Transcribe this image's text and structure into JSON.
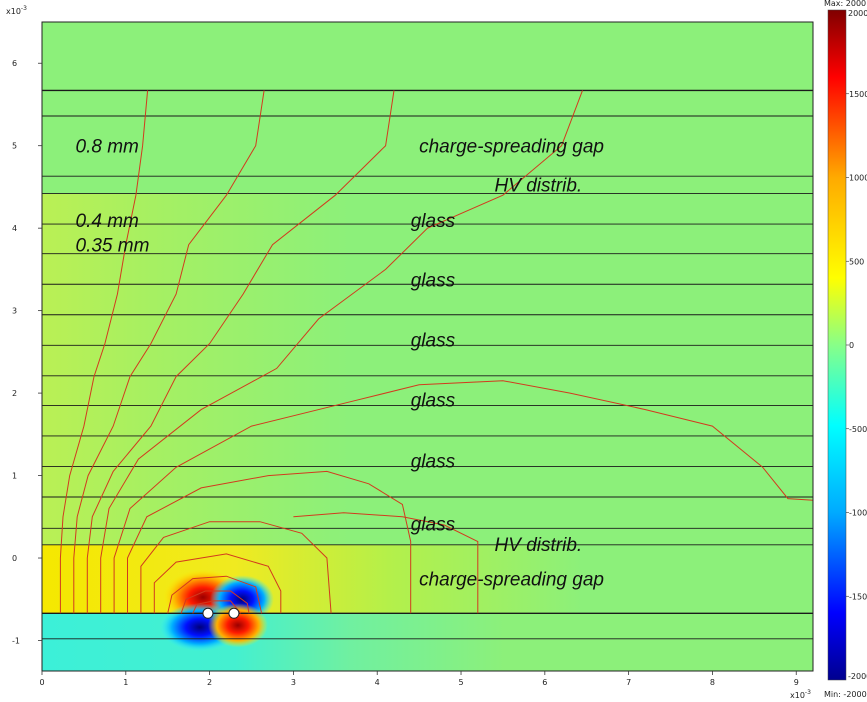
{
  "chart_data": {
    "type": "heatmap",
    "title": "",
    "x_multiplier_label": "x10",
    "x_multiplier_exp": "-3",
    "y_multiplier_label": "x10",
    "y_multiplier_exp": "-3",
    "xlim": [
      0,
      9.2
    ],
    "ylim": [
      -1.37,
      6.5
    ],
    "x_ticks": [
      0,
      1,
      2,
      3,
      4,
      5,
      6,
      7,
      8,
      9
    ],
    "y_ticks": [
      -1,
      0,
      1,
      2,
      3,
      4,
      5,
      6
    ],
    "layer_boundaries_y": [
      -0.98,
      -0.67,
      0.16,
      0.36,
      0.74,
      1.11,
      1.48,
      1.85,
      2.21,
      2.58,
      2.95,
      3.32,
      3.69,
      4.05,
      4.42,
      4.63,
      5.36,
      5.67
    ],
    "electrodes": [
      {
        "x": 1.98,
        "y": -0.67
      },
      {
        "x": 2.29,
        "y": -0.67
      }
    ],
    "annotations": [
      {
        "text": "0.8 mm",
        "x": 0.4,
        "y": 5.0
      },
      {
        "text": "charge-spreading gap",
        "x": 4.5,
        "y": 5.0
      },
      {
        "text": "HV distrib.",
        "x": 5.4,
        "y": 4.53
      },
      {
        "text": "0.4 mm",
        "x": 0.4,
        "y": 4.1
      },
      {
        "text": "glass",
        "x": 4.4,
        "y": 4.1
      },
      {
        "text": "0.35 mm",
        "x": 0.4,
        "y": 3.8
      },
      {
        "text": "glass",
        "x": 4.4,
        "y": 3.38
      },
      {
        "text": "glass",
        "x": 4.4,
        "y": 2.65
      },
      {
        "text": "glass",
        "x": 4.4,
        "y": 1.92
      },
      {
        "text": "glass",
        "x": 4.4,
        "y": 1.18
      },
      {
        "text": "glass",
        "x": 4.4,
        "y": 0.42
      },
      {
        "text": "HV distrib.",
        "x": 5.4,
        "y": 0.17
      },
      {
        "text": "charge-spreading gap",
        "x": 4.5,
        "y": -0.25
      }
    ],
    "colorbar": {
      "range": [
        -2000,
        2000
      ],
      "ticks": [
        2000,
        1500,
        1000,
        500,
        0,
        -500,
        -1000,
        -1500,
        -2000
      ],
      "max_label": "Max: 2000",
      "min_label": "Min: -2000",
      "colormap": [
        "#00008f",
        "#0000ff",
        "#00aaff",
        "#00ffff",
        "#88ff88",
        "#ffff00",
        "#ffaa00",
        "#ff0000",
        "#800000"
      ]
    },
    "background_color": "#8cf07a",
    "potential_lines": [
      [
        [
          0.22,
          -0.67
        ],
        [
          0.22,
          0.0
        ],
        [
          0.25,
          0.5
        ],
        [
          0.33,
          1.0
        ],
        [
          0.5,
          1.6
        ],
        [
          0.62,
          2.2
        ],
        [
          0.75,
          2.6
        ],
        [
          0.9,
          3.2
        ],
        [
          1.0,
          3.8
        ],
        [
          1.12,
          4.4
        ],
        [
          1.2,
          5.0
        ],
        [
          1.26,
          5.67
        ]
      ],
      [
        [
          0.38,
          -0.67
        ],
        [
          0.38,
          0.0
        ],
        [
          0.42,
          0.5
        ],
        [
          0.55,
          1.0
        ],
        [
          0.85,
          1.6
        ],
        [
          1.05,
          2.2
        ],
        [
          1.3,
          2.6
        ],
        [
          1.6,
          3.2
        ],
        [
          1.75,
          3.8
        ],
        [
          2.2,
          4.4
        ],
        [
          2.55,
          5.0
        ],
        [
          2.65,
          5.67
        ]
      ],
      [
        [
          0.54,
          -0.67
        ],
        [
          0.54,
          0.0
        ],
        [
          0.6,
          0.5
        ],
        [
          0.85,
          1.05
        ],
        [
          1.3,
          1.6
        ],
        [
          1.6,
          2.2
        ],
        [
          2.0,
          2.6
        ],
        [
          2.4,
          3.2
        ],
        [
          2.75,
          3.8
        ],
        [
          3.5,
          4.4
        ],
        [
          4.1,
          5.0
        ],
        [
          4.2,
          5.67
        ]
      ],
      [
        [
          0.7,
          -0.67
        ],
        [
          0.7,
          0.0
        ],
        [
          0.8,
          0.6
        ],
        [
          1.15,
          1.2
        ],
        [
          1.9,
          1.8
        ],
        [
          2.8,
          2.3
        ],
        [
          3.3,
          2.9
        ],
        [
          4.1,
          3.5
        ],
        [
          4.6,
          4.0
        ],
        [
          5.5,
          4.4
        ],
        [
          6.2,
          5.0
        ],
        [
          6.45,
          5.67
        ]
      ],
      [
        [
          0.86,
          -0.67
        ],
        [
          0.86,
          0.0
        ],
        [
          1.05,
          0.6
        ],
        [
          1.6,
          1.1
        ],
        [
          2.5,
          1.6
        ],
        [
          3.7,
          1.9
        ],
        [
          4.5,
          2.1
        ],
        [
          5.5,
          2.15
        ],
        [
          6.3,
          2.0
        ],
        [
          7.2,
          1.8
        ],
        [
          8.0,
          1.6
        ],
        [
          8.6,
          1.1
        ],
        [
          8.9,
          0.72
        ],
        [
          9.2,
          0.7
        ]
      ],
      [
        [
          1.02,
          -0.67
        ],
        [
          1.02,
          0.0
        ],
        [
          1.25,
          0.5
        ],
        [
          1.9,
          0.85
        ],
        [
          2.7,
          1.0
        ],
        [
          3.4,
          1.05
        ],
        [
          3.9,
          0.9
        ],
        [
          4.3,
          0.65
        ],
        [
          4.4,
          0.2
        ],
        [
          4.4,
          -0.67
        ]
      ],
      [
        [
          1.18,
          -0.67
        ],
        [
          1.18,
          -0.1
        ],
        [
          1.45,
          0.25
        ],
        [
          2.0,
          0.44
        ],
        [
          2.6,
          0.44
        ],
        [
          3.1,
          0.3
        ],
        [
          3.4,
          0.0
        ],
        [
          3.45,
          -0.67
        ]
      ],
      [
        [
          1.34,
          -0.67
        ],
        [
          1.34,
          -0.3
        ],
        [
          1.6,
          -0.05
        ],
        [
          2.2,
          0.05
        ],
        [
          2.7,
          -0.1
        ],
        [
          2.85,
          -0.4
        ],
        [
          2.85,
          -0.67
        ]
      ],
      [
        [
          1.5,
          -0.67
        ],
        [
          1.55,
          -0.45
        ],
        [
          1.8,
          -0.25
        ],
        [
          2.2,
          -0.22
        ],
        [
          2.55,
          -0.35
        ],
        [
          2.62,
          -0.67
        ]
      ],
      [
        [
          1.66,
          -0.67
        ],
        [
          1.72,
          -0.5
        ],
        [
          1.95,
          -0.4
        ],
        [
          2.25,
          -0.4
        ],
        [
          2.45,
          -0.55
        ],
        [
          2.47,
          -0.67
        ]
      ],
      [
        [
          1.8,
          -0.67
        ],
        [
          1.85,
          -0.56
        ],
        [
          2.05,
          -0.52
        ],
        [
          2.25,
          -0.52
        ],
        [
          2.37,
          -0.67
        ]
      ],
      [
        [
          5.2,
          -0.67
        ],
        [
          5.2,
          0.2
        ],
        [
          4.8,
          0.4
        ],
        [
          4.3,
          0.5
        ],
        [
          3.6,
          0.55
        ],
        [
          3.0,
          0.5
        ]
      ]
    ]
  }
}
